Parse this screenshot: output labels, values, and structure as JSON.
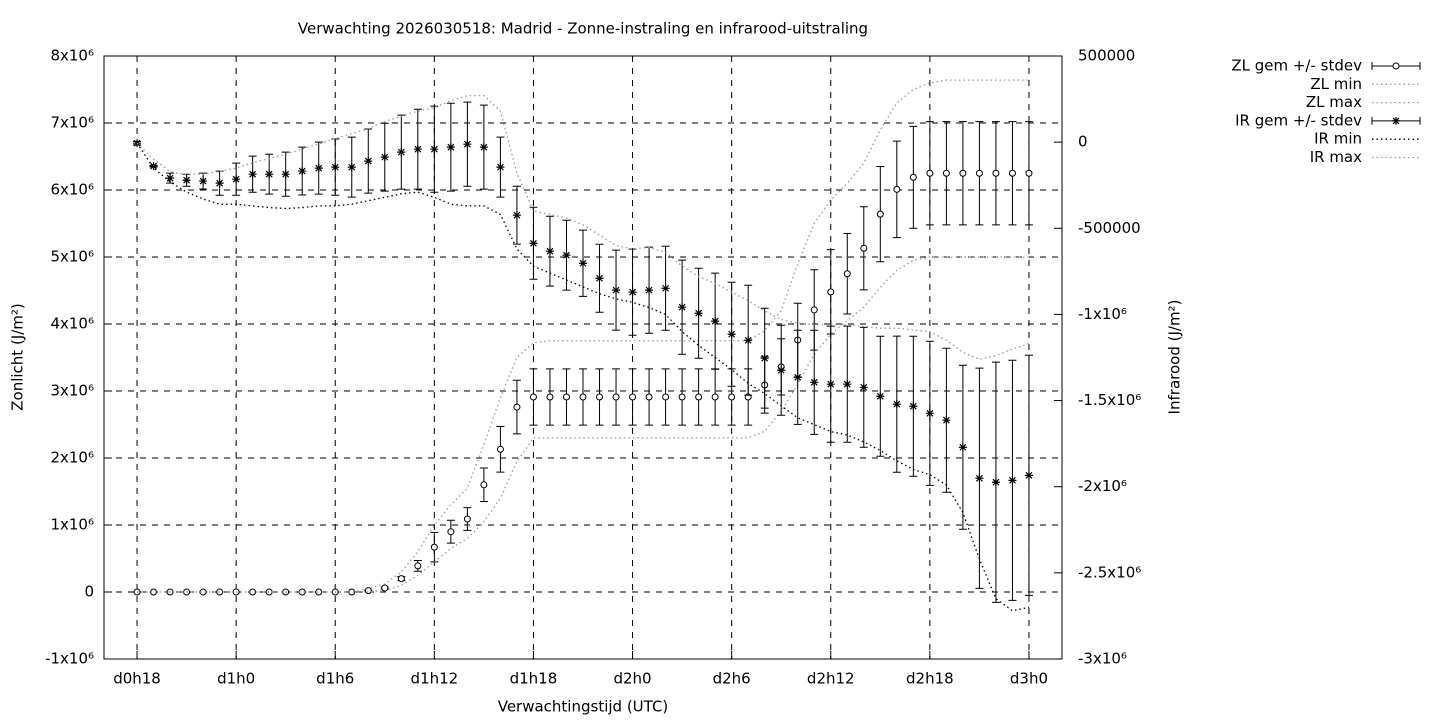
{
  "chart_data": {
    "type": "errorbar",
    "title": "Verwachting 2026030518: Madrid - Zonne-instraling en infrarood-uitstraling",
    "xlabel": "Verwachtingstijd (UTC)",
    "ylabel": "Zonlicht (J/m²)",
    "y2label": "Infrarood (J/m²)",
    "grid": true,
    "legend": "top-right",
    "x": [
      18,
      19,
      20,
      21,
      22,
      23,
      24,
      25,
      26,
      27,
      28,
      29,
      30,
      31,
      32,
      33,
      34,
      35,
      36,
      37,
      38,
      39,
      40,
      41,
      42,
      43,
      44,
      45,
      46,
      47,
      48,
      49,
      50,
      51,
      52,
      53,
      54,
      55,
      56,
      57,
      58,
      59,
      60,
      61,
      62,
      63,
      64,
      65,
      66,
      67,
      68,
      69,
      70,
      71,
      72
    ],
    "xlim": [
      16,
      74
    ],
    "xticks": [
      {
        "value": 18,
        "label": "d0h18"
      },
      {
        "value": 24,
        "label": "d1h0"
      },
      {
        "value": 30,
        "label": "d1h6"
      },
      {
        "value": 36,
        "label": "d1h12"
      },
      {
        "value": 42,
        "label": "d1h18"
      },
      {
        "value": 48,
        "label": "d2h0"
      },
      {
        "value": 54,
        "label": "d2h6"
      },
      {
        "value": 60,
        "label": "d2h12"
      },
      {
        "value": 66,
        "label": "d2h18"
      },
      {
        "value": 72,
        "label": "d3h0"
      }
    ],
    "ylim": [
      -1000000,
      8000000
    ],
    "yticks": [
      {
        "value": -1000000,
        "label": "-1x10⁶"
      },
      0,
      {
        "value": 1000000,
        "label": "1x10⁶"
      },
      {
        "value": 2000000,
        "label": "2x10⁶"
      },
      {
        "value": 3000000,
        "label": "3x10⁶"
      },
      {
        "value": 4000000,
        "label": "4x10⁶"
      },
      {
        "value": 5000000,
        "label": "5x10⁶"
      },
      {
        "value": 6000000,
        "label": "6x10⁶"
      },
      {
        "value": 7000000,
        "label": "7x10⁶"
      },
      {
        "value": 8000000,
        "label": "8x10⁶"
      }
    ],
    "y2lim": [
      -3000000,
      500000
    ],
    "y2ticks": [
      {
        "value": -3000000,
        "label": "-3x10⁶"
      },
      {
        "value": -2500000,
        "label": "-2.5x10⁶"
      },
      {
        "value": -2000000,
        "label": "-2x10⁶"
      },
      {
        "value": -1500000,
        "label": "-1.5x10⁶"
      },
      {
        "value": -1000000,
        "label": "-1x10⁶"
      },
      -500000,
      0,
      500000
    ],
    "series": [
      {
        "name": "ZL gem +/- stdev",
        "color": "#000000",
        "style": "errorbar",
        "marker": "circle",
        "values": [
          0,
          0,
          0,
          0,
          0,
          0,
          0,
          0,
          0,
          0,
          0,
          0,
          0,
          0,
          20000,
          60000,
          200000,
          390000,
          670000,
          900000,
          1090000,
          1600000,
          2130000,
          2760000,
          2910000,
          2910000,
          2910000,
          2910000,
          2910000,
          2910000,
          2910000,
          2910000,
          2910000,
          2910000,
          2910000,
          2910000,
          2910000,
          2910000,
          3090000,
          3360000,
          3760000,
          4210000,
          4480000,
          4750000,
          5130000,
          5640000,
          6010000,
          6190000,
          6250000,
          6250000,
          6250000,
          6250000,
          6250000,
          6250000,
          6250000
        ],
        "errors": [
          0,
          0,
          0,
          0,
          0,
          0,
          0,
          0,
          0,
          0,
          0,
          0,
          0,
          0,
          5000,
          15000,
          30000,
          80000,
          220000,
          170000,
          170000,
          250000,
          340000,
          400000,
          420000,
          420000,
          420000,
          420000,
          420000,
          420000,
          420000,
          420000,
          420000,
          420000,
          420000,
          420000,
          420000,
          420000,
          420000,
          420000,
          550000,
          600000,
          630000,
          600000,
          620000,
          710000,
          720000,
          760000,
          770000,
          770000,
          770000,
          770000,
          770000,
          770000,
          770000
        ]
      },
      {
        "name": "ZL min",
        "color": "#999999",
        "style": "dotted",
        "values": [
          0,
          0,
          0,
          0,
          0,
          0,
          0,
          0,
          0,
          0,
          0,
          0,
          0,
          0,
          0,
          20000,
          100000,
          250000,
          450000,
          650000,
          800000,
          1050000,
          1400000,
          1950000,
          2300000,
          2300000,
          2300000,
          2300000,
          2300000,
          2300000,
          2300000,
          2300000,
          2300000,
          2300000,
          2300000,
          2300000,
          2300000,
          2300000,
          2400000,
          2700000,
          3100000,
          3550000,
          3850000,
          4050000,
          4250000,
          4550000,
          4800000,
          4950000,
          5000000,
          5000000,
          5000000,
          5000000,
          5000000,
          5000000,
          5000000
        ]
      },
      {
        "name": "ZL max",
        "color": "#999999",
        "style": "dotted",
        "values": [
          0,
          0,
          0,
          0,
          0,
          0,
          0,
          0,
          0,
          0,
          0,
          0,
          0,
          0,
          50000,
          120000,
          300000,
          600000,
          1000000,
          1300000,
          1550000,
          2200000,
          2900000,
          3500000,
          3720000,
          3750000,
          3750000,
          3750000,
          3750000,
          3750000,
          3750000,
          3750000,
          3750000,
          3750000,
          3750000,
          3750000,
          3750000,
          3750000,
          3900000,
          4200000,
          4900000,
          5500000,
          5850000,
          6100000,
          6400000,
          6900000,
          7300000,
          7500000,
          7600000,
          7640000,
          7640000,
          7640000,
          7640000,
          7640000,
          7640000
        ]
      },
      {
        "name": "IR gem +/- stdev",
        "color": "#000000",
        "style": "errorbar",
        "marker": "star",
        "axis": "y2",
        "values": [
          -6000,
          -139000,
          -209000,
          -221000,
          -226000,
          -238000,
          -215000,
          -186000,
          -186000,
          -186000,
          -168000,
          -151000,
          -145000,
          -145000,
          -110000,
          -87000,
          -58000,
          -41000,
          -41000,
          -29000,
          -12000,
          -29000,
          -145000,
          -424000,
          -587000,
          -633000,
          -656000,
          -703000,
          -790000,
          -859000,
          -871000,
          -859000,
          -848000,
          -958000,
          -993000,
          -1039000,
          -1115000,
          -1150000,
          -1254000,
          -1324000,
          -1365000,
          -1394000,
          -1405000,
          -1405000,
          -1423000,
          -1475000,
          -1521000,
          -1533000,
          -1574000,
          -1614000,
          -1771000,
          -1951000,
          -1974000,
          -1963000,
          -1934000
        ],
        "errors": [
          10000,
          5000,
          29000,
          35000,
          46000,
          70000,
          93000,
          105000,
          116000,
          128000,
          139000,
          151000,
          163000,
          174000,
          186000,
          197000,
          215000,
          232000,
          250000,
          255000,
          244000,
          244000,
          174000,
          168000,
          209000,
          203000,
          203000,
          192000,
          197000,
          232000,
          250000,
          250000,
          244000,
          273000,
          261000,
          279000,
          302000,
          319000,
          290000,
          261000,
          273000,
          302000,
          337000,
          337000,
          348000,
          348000,
          395000,
          406000,
          418000,
          418000,
          476000,
          639000,
          697000,
          697000,
          697000
        ]
      },
      {
        "name": "IR min",
        "color": "#000000",
        "style": "dotted",
        "axis": "y2",
        "values": [
          -6000,
          -150000,
          -230000,
          -290000,
          -330000,
          -360000,
          -360000,
          -370000,
          -380000,
          -385000,
          -380000,
          -370000,
          -370000,
          -360000,
          -340000,
          -320000,
          -300000,
          -290000,
          -320000,
          -360000,
          -370000,
          -370000,
          -420000,
          -620000,
          -720000,
          -760000,
          -800000,
          -840000,
          -880000,
          -910000,
          -930000,
          -960000,
          -1000000,
          -1100000,
          -1180000,
          -1250000,
          -1320000,
          -1400000,
          -1460000,
          -1530000,
          -1600000,
          -1640000,
          -1680000,
          -1700000,
          -1740000,
          -1790000,
          -1850000,
          -1900000,
          -1930000,
          -1990000,
          -2150000,
          -2420000,
          -2650000,
          -2720000,
          -2700000
        ]
      },
      {
        "name": "IR max",
        "color": "#999999",
        "style": "dotted",
        "axis": "y2",
        "values": [
          -6000,
          -100000,
          -170000,
          -190000,
          -185000,
          -170000,
          -150000,
          -120000,
          -95000,
          -70000,
          -40000,
          -10000,
          20000,
          50000,
          80000,
          120000,
          150000,
          180000,
          200000,
          240000,
          270000,
          270000,
          180000,
          -180000,
          -400000,
          -420000,
          -440000,
          -480000,
          -540000,
          -600000,
          -620000,
          -610000,
          -640000,
          -720000,
          -780000,
          -820000,
          -870000,
          -920000,
          -980000,
          -1030000,
          -1050000,
          -1060000,
          -1060000,
          -1060000,
          -1070000,
          -1080000,
          -1080000,
          -1090000,
          -1100000,
          -1150000,
          -1220000,
          -1260000,
          -1240000,
          -1200000,
          -1170000
        ]
      }
    ]
  }
}
